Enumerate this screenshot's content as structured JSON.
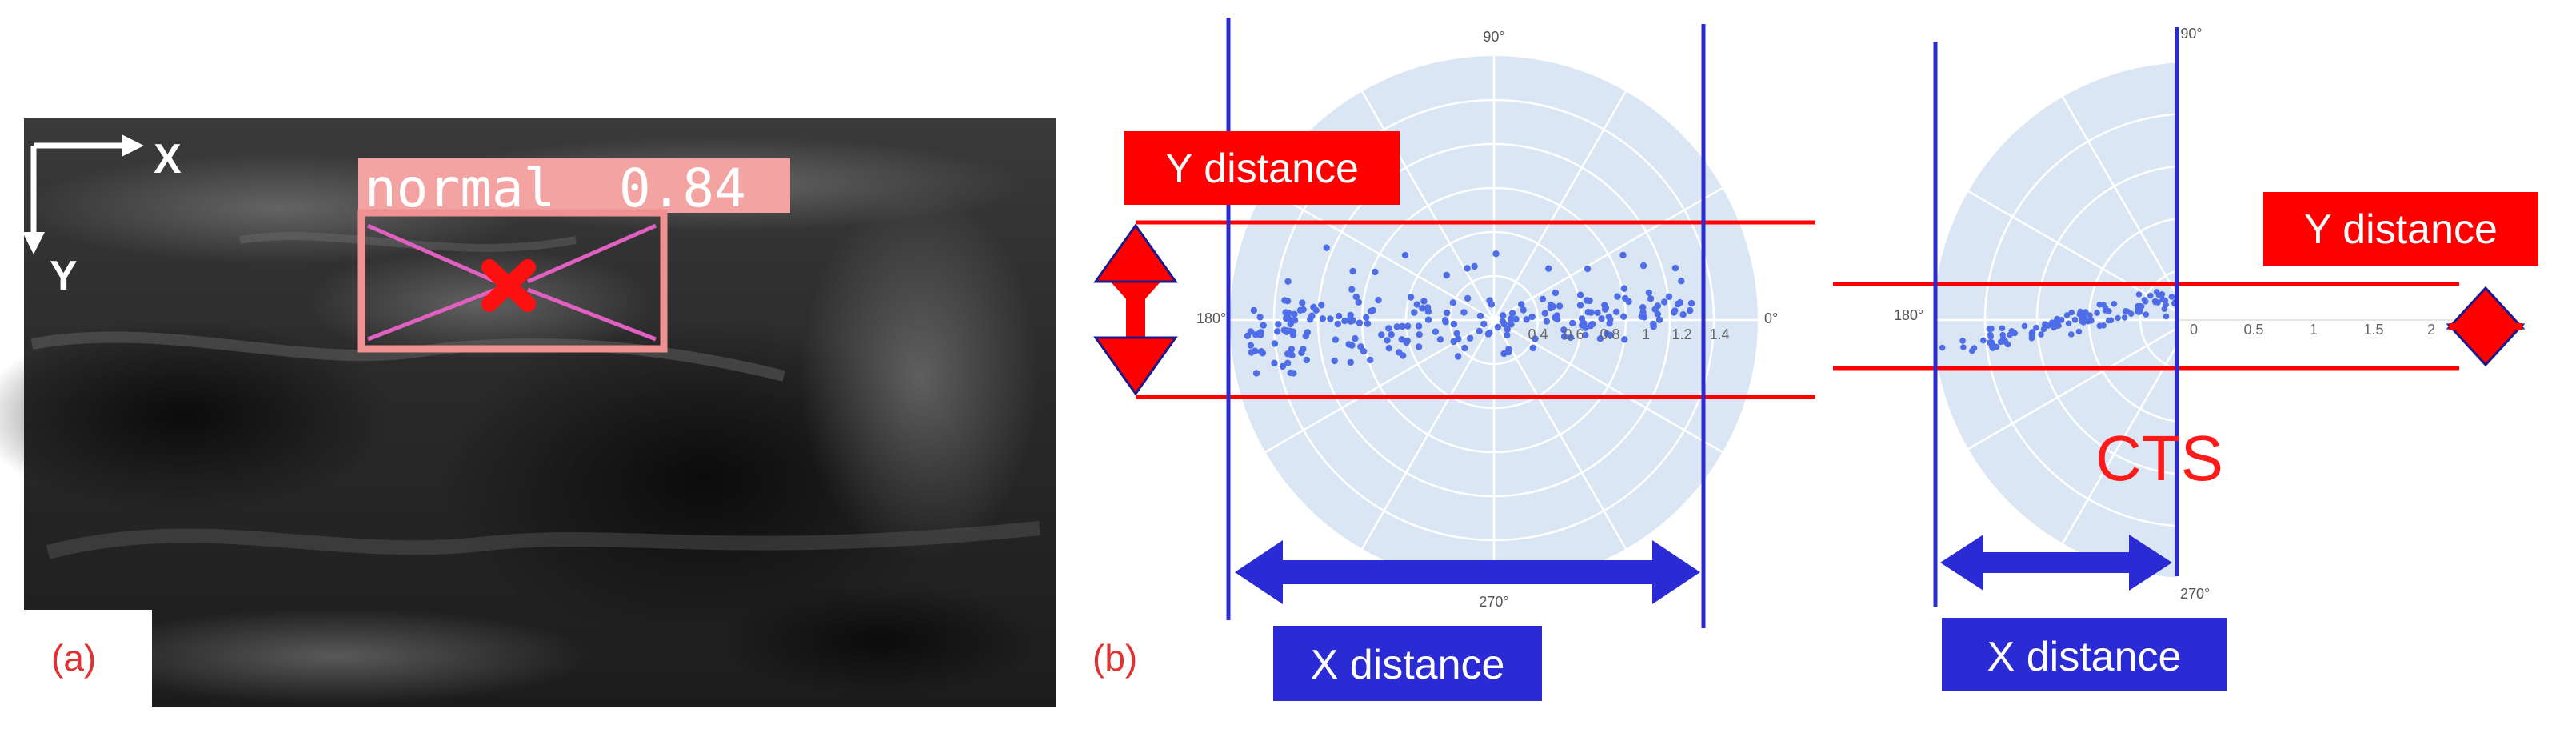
{
  "panel_a": {
    "label": "(a)",
    "axis_x": "X",
    "axis_y": "Y",
    "detection_text": "normal  0.84"
  },
  "panel_b": {
    "label": "(b)",
    "left_plot": {
      "angle_top": "90°",
      "angle_left": "180°",
      "angle_right": "0°",
      "angle_bottom": "270°",
      "radial_ticks": [
        "0.4",
        "0.6",
        "0.8",
        "1",
        "1.2",
        "1.4"
      ],
      "y_label": "Y distance",
      "x_label": "X distance"
    },
    "right_plot": {
      "angle_top": "90°",
      "angle_left": "180°",
      "angle_bottom": "270°",
      "radial_ticks": [
        "0",
        "0.5",
        "1",
        "1.5",
        "2"
      ],
      "y_label": "Y distance",
      "x_label": "X distance",
      "class_label": "CTS"
    }
  },
  "colors": {
    "annotation_red": "#ff0000",
    "annotation_blue": "#2b2bd6",
    "polar_fill": "#dbe6f4",
    "point": "#4f6de6",
    "box": "#f09090"
  }
}
